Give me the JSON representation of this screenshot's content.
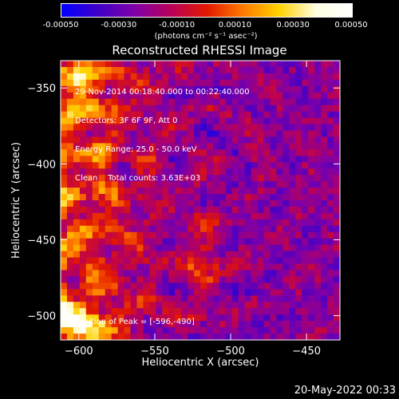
{
  "colorbar": {
    "tick_labels": [
      "-0.00050",
      "-0.00030",
      "-0.00010",
      "0.00010",
      "0.00030",
      "0.00050"
    ],
    "tick_values": [
      -0.0005,
      -0.0003,
      -0.0001,
      0.0001,
      0.0003,
      0.0005
    ],
    "range": [
      -0.0005,
      0.0005
    ],
    "unit_label": "(photons cm⁻² s⁻¹ asec⁻²)",
    "stops": [
      "#0000ff",
      "#3f00c8",
      "#7e00a8",
      "#b8005a",
      "#e21800",
      "#ff7a00",
      "#ffd200",
      "#ffffe0",
      "#ffffff"
    ]
  },
  "info_lines": [
    "29-Nov-2014 00:18:40.000 to 00:22:40.000",
    "Detectors: 3F 6F 9F, Att 0",
    "Energy Range: 25.0 - 50.0 keV",
    "Clean    Total counts: 3.63E+03"
  ],
  "peak_text": "Position of Peak = [-596,-490]",
  "footer_timestamp": "20-May-2022 00:33",
  "chart_data": {
    "type": "heatmap",
    "title": "Reconstructed RHESSI Image",
    "xlabel": "Heliocentric X (arcsec)",
    "ylabel": "Heliocentric Y (arcsec)",
    "xlim": [
      -612,
      -428
    ],
    "ylim": [
      -516,
      -332
    ],
    "xticks": [
      -600,
      -550,
      -500,
      -450
    ],
    "yticks": [
      -500,
      -450,
      -400,
      -350
    ],
    "xtick_labels": [
      "−600",
      "−550",
      "−500",
      "−450"
    ],
    "ytick_labels": [
      "−500",
      "−450",
      "−400",
      "−350"
    ],
    "grid": false,
    "value_range": [
      -0.0005,
      0.0005
    ],
    "colormap": "red-temperature (blue negative to white positive)",
    "peak_position": [
      -596,
      -490
    ]
  }
}
